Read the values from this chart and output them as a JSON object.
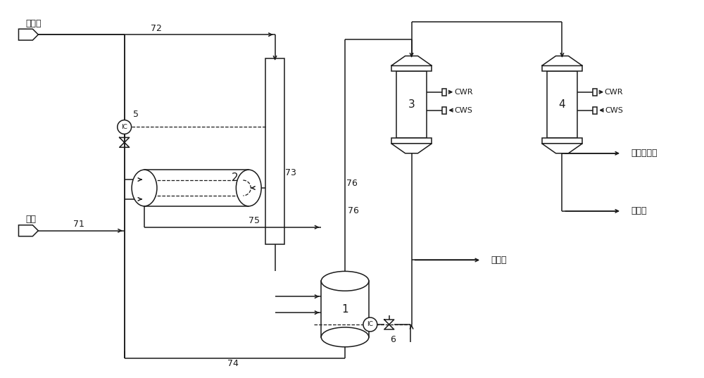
{
  "bg_color": "#ffffff",
  "line_color": "#1a1a1a",
  "figsize": [
    10.0,
    5.37
  ],
  "dpi": 100,
  "labels": {
    "hcl_input": "氯化氢",
    "methanol_input": "甲醇",
    "acid_water_1": "酸水罐",
    "acid_water_2": "酸水罐",
    "post_treatment": "后处理系统",
    "CWR": "CWR",
    "CWS": "CWS",
    "num_72": "72",
    "num_73": "73",
    "num_74": "74",
    "num_75": "75",
    "num_76": "76",
    "num_71": "71",
    "num_5": "5",
    "num_6": "6",
    "num_1": "1",
    "num_2": "2",
    "num_3": "3",
    "num_4": "4"
  }
}
